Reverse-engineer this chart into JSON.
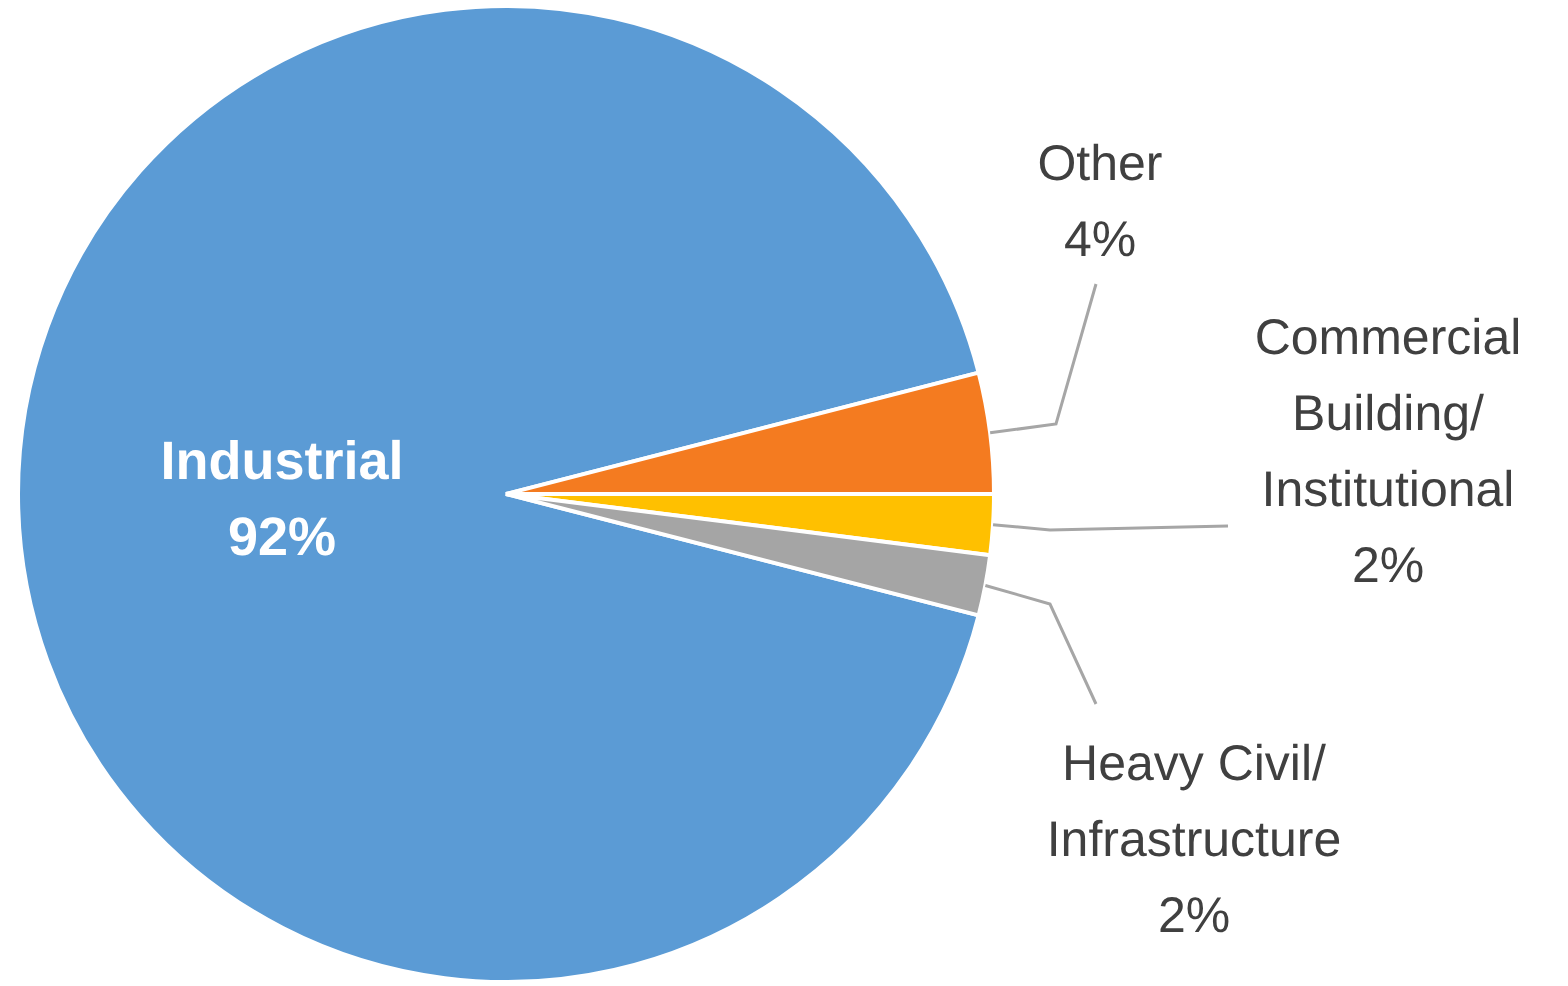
{
  "chart_data": {
    "type": "pie",
    "categories": [
      "Industrial",
      "Other",
      "Commercial Building/ Institutional",
      "Heavy Civil/ Infrastructure"
    ],
    "values": [
      92,
      4,
      2,
      2
    ],
    "value_labels": [
      "92%",
      "4%",
      "2%",
      "2%"
    ],
    "colors": [
      "#5b9bd5",
      "#f47b20",
      "#ffc000",
      "#a5a5a5"
    ],
    "legend": false
  }
}
